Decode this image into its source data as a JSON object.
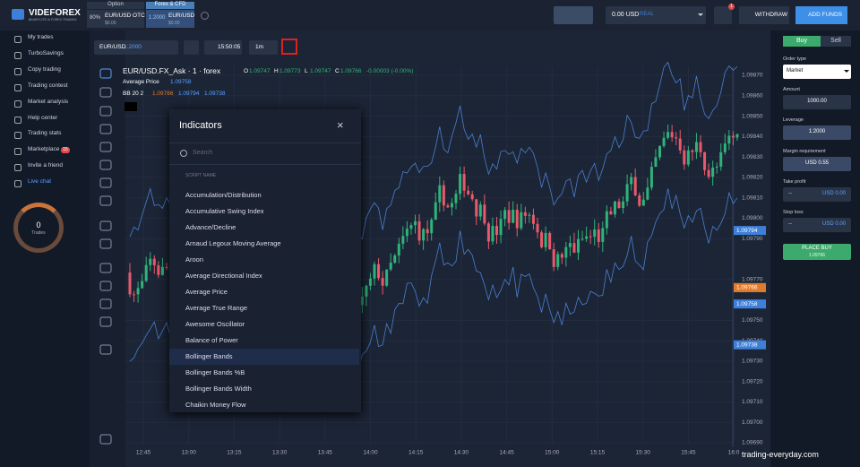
{
  "logo": {
    "name": "VIDEFOREX",
    "tagline": "BINARY,CFD & FOREX TRADING"
  },
  "header": {
    "option_tab": "Option",
    "forex_tab": "Forex & CFD",
    "asset1_pct": "80%",
    "asset1_name": "EUR/USD OTC",
    "asset1_amount": "$0.00",
    "asset2_lev": "1:2000",
    "asset2_name": "EUR/USD",
    "asset2_amount": "$0.00",
    "balance": "0.00 USD",
    "account": "REAL",
    "notif": "1",
    "withdraw": "WITHDRAW",
    "add_funds": "ADD FUNDS"
  },
  "menu": [
    "My trades",
    "TurboSavings",
    "Copy trading",
    "Trading contest",
    "Market analysis",
    "Help center",
    "Trading stats",
    "Marketplace",
    "Invite a friend",
    "Live chat"
  ],
  "marketplace_badge": "15",
  "trades_widget": {
    "count": "0",
    "label": "Trades"
  },
  "toolbar": {
    "symbol": "EUR/USD",
    "leverage": "1:2000",
    "time": "15:50:05",
    "interval": "1m"
  },
  "chart": {
    "title": "EUR/USD.FX_Ask · 1 · forex",
    "ohlc": [
      {
        "k": "O",
        "v": "1.09747"
      },
      {
        "k": "H",
        "v": "1.09773"
      },
      {
        "k": "L",
        "v": "1.09747"
      },
      {
        "k": "C",
        "v": "1.09766"
      }
    ],
    "change": "-0.00003 (-0.00%)",
    "avg_price_label": "Average Price",
    "avg_price": "1.09758",
    "bb_label": "BB 20 2",
    "bb_values": [
      "1.09766",
      "1.09794",
      "1.09738"
    ],
    "price_ticks": [
      "1.09870",
      "1.09860",
      "1.09850",
      "1.09840",
      "1.09830",
      "1.09820",
      "1.09810",
      "1.09800",
      "1.09790",
      "1.09770",
      "1.09750",
      "1.09740",
      "1.09730",
      "1.09720",
      "1.09710",
      "1.09700",
      "1.09690"
    ],
    "price_tags": [
      {
        "v": "1.09794",
        "color": "#3d7fd9"
      },
      {
        "v": "1.09766",
        "color": "#3daa6d"
      },
      {
        "v": "1.09766",
        "color": "#e07b2c"
      },
      {
        "v": "1.09758",
        "color": "#3d7fd9"
      },
      {
        "v": "1.09738",
        "color": "#3d7fd9"
      }
    ],
    "time_ticks": [
      "12:45",
      "13:00",
      "13:15",
      "13:30",
      "13:45",
      "14:00",
      "14:15",
      "14:30",
      "14:45",
      "15:00",
      "15:15",
      "15:30",
      "15:45",
      "16:0"
    ]
  },
  "indicators": {
    "title": "Indicators",
    "search": "Search",
    "column": "SCRIPT NAME",
    "items": [
      "Accumulation/Distribution",
      "Accumulative Swing Index",
      "Advance/Decline",
      "Arnaud Legoux Moving Average",
      "Aroon",
      "Average Directional Index",
      "Average Price",
      "Average True Range",
      "Awesome Oscillator",
      "Balance of Power",
      "Bollinger Bands",
      "Bollinger Bands %B",
      "Bollinger Bands Width",
      "Chaikin Money Flow"
    ],
    "selected": 10
  },
  "order": {
    "buy": "Buy",
    "sell": "Sell",
    "order_type_label": "Order type",
    "order_type": "Market",
    "amount_label": "Amount",
    "amount": "1000.00",
    "leverage_label": "Leverage",
    "leverage": "1:2000",
    "margin_label": "Margin requirement",
    "margin": "USD 0.55",
    "tp_label": "Take profit",
    "tp_dash": "--",
    "tp": "USD 0.00",
    "sl_label": "Stop loss",
    "sl_dash": "--",
    "sl": "USD 0.00",
    "place": "PLACE BUY",
    "place_price": "1.09766"
  },
  "watermark": "trading-everyday.com"
}
